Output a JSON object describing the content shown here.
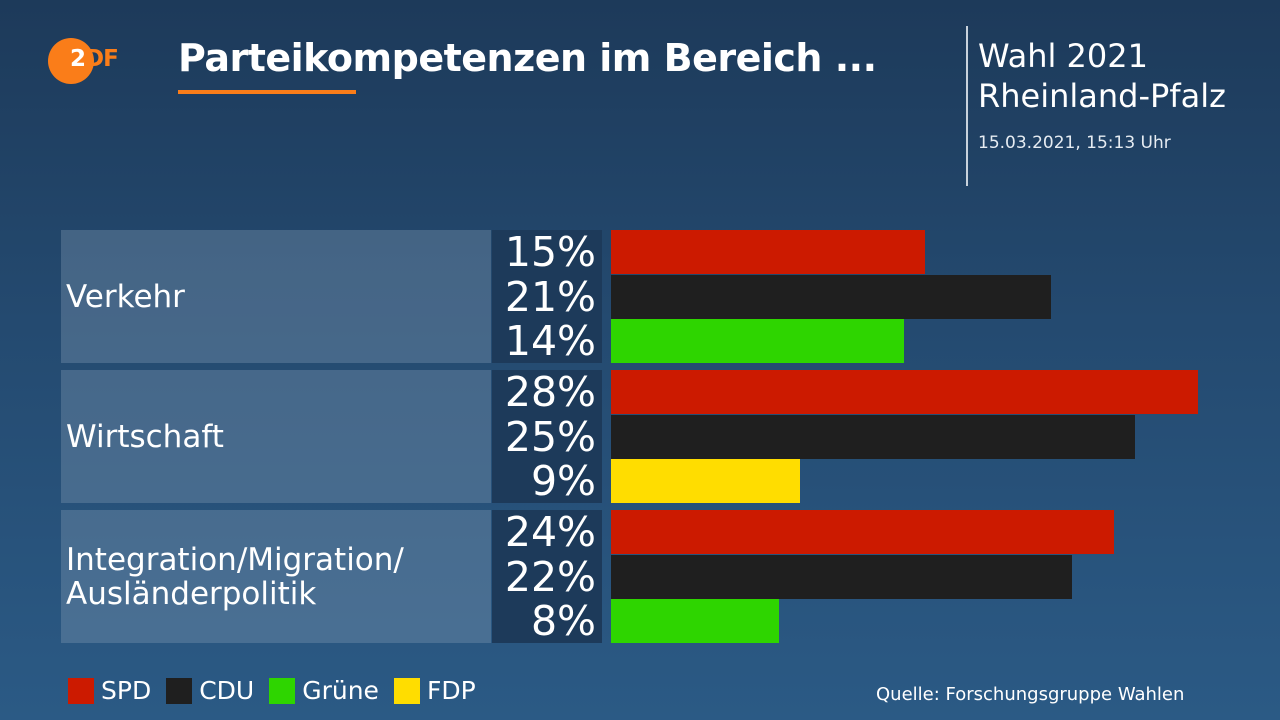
{
  "logo": {
    "part1": "2",
    "part2": "DF"
  },
  "header": {
    "title": "Parteikompetenzen im Bereich ...",
    "right_line1": "Wahl 2021",
    "right_line2": "Rheinland-Pfalz",
    "timestamp": "15.03.2021, 15:13 Uhr"
  },
  "chart_data": {
    "type": "bar",
    "orientation": "horizontal",
    "unit": "%",
    "xlim": [
      0,
      28
    ],
    "categories": [
      "Verkehr",
      "Wirtschaft",
      "Integration/Migration/\nAusländerpolitik"
    ],
    "groups": [
      {
        "category": "Verkehr",
        "bars": [
          {
            "party": "SPD",
            "value": 15,
            "label": "15%",
            "color": "#cc1a00"
          },
          {
            "party": "CDU",
            "value": 21,
            "label": "21%",
            "color": "#1f1f1f"
          },
          {
            "party": "Grüne",
            "value": 14,
            "label": "14%",
            "color": "#2ed500"
          }
        ]
      },
      {
        "category": "Wirtschaft",
        "bars": [
          {
            "party": "SPD",
            "value": 28,
            "label": "28%",
            "color": "#cc1a00"
          },
          {
            "party": "CDU",
            "value": 25,
            "label": "25%",
            "color": "#1f1f1f"
          },
          {
            "party": "FDP",
            "value": 9,
            "label": "9%",
            "color": "#ffdd00"
          }
        ]
      },
      {
        "category": "Integration/Migration/\nAusländerpolitik",
        "bars": [
          {
            "party": "SPD",
            "value": 24,
            "label": "24%",
            "color": "#cc1a00"
          },
          {
            "party": "CDU",
            "value": 22,
            "label": "22%",
            "color": "#1f1f1f"
          },
          {
            "party": "Grüne",
            "value": 8,
            "label": "8%",
            "color": "#2ed500"
          }
        ]
      }
    ],
    "legend": [
      {
        "name": "SPD",
        "color": "#cc1a00"
      },
      {
        "name": "CDU",
        "color": "#1f1f1f"
      },
      {
        "name": "Grüne",
        "color": "#2ed500"
      },
      {
        "name": "FDP",
        "color": "#ffdd00"
      }
    ],
    "legend_position": "bottom-left"
  },
  "source": "Quelle: Forschungsgruppe Wahlen",
  "colors": {
    "accent": "#fa7d19",
    "background_top": "#1d3a5a",
    "background_bottom": "#2b5a85"
  }
}
